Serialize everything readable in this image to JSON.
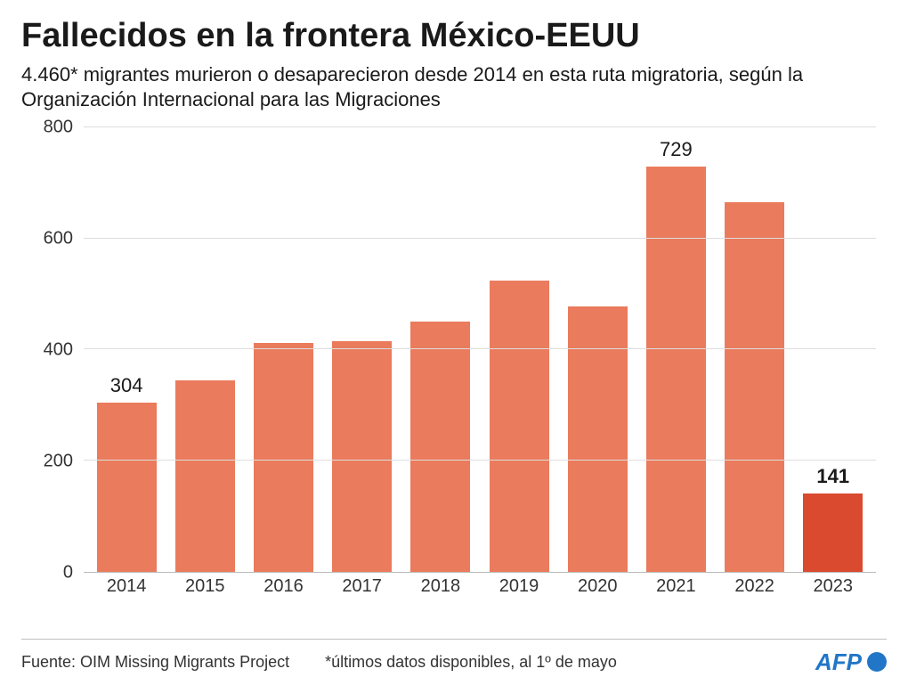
{
  "title": "Fallecidos en la frontera México-EEUU",
  "subtitle": "4.460* migrantes murieron o desaparecieron desde 2014 en esta ruta migratoria, según la Organización Internacional para las Migraciones",
  "chart": {
    "type": "bar",
    "ylim": [
      0,
      800
    ],
    "ytick_step": 200,
    "yticks": [
      0,
      200,
      400,
      600,
      800
    ],
    "categories": [
      "2014",
      "2015",
      "2016",
      "2017",
      "2018",
      "2019",
      "2020",
      "2021",
      "2022",
      "2023"
    ],
    "values": [
      304,
      345,
      412,
      415,
      450,
      525,
      478,
      729,
      665,
      141
    ],
    "bar_colors": [
      "#ea7b5c",
      "#ea7b5c",
      "#ea7b5c",
      "#ea7b5c",
      "#ea7b5c",
      "#ea7b5c",
      "#ea7b5c",
      "#ea7b5c",
      "#ea7b5c",
      "#d94a2f"
    ],
    "value_labels": {
      "0": {
        "text": "304",
        "bold": false
      },
      "7": {
        "text": "729",
        "bold": false
      },
      "9": {
        "text": "141",
        "bold": true
      }
    },
    "background_color": "#ffffff",
    "grid_color": "#dddddd",
    "axis_font_size": 20,
    "bar_width_ratio": 0.76
  },
  "footer": {
    "source": "Fuente: OIM Missing Migrants Project",
    "note": "*últimos datos disponibles, al 1º de mayo",
    "logo_text": "AFP",
    "logo_color": "#2176c7"
  }
}
